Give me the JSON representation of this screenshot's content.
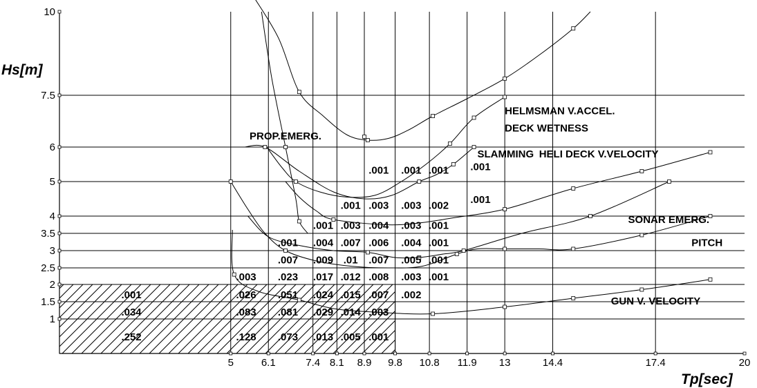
{
  "chart_data": {
    "type": "line",
    "xlabel": "Tp[sec]",
    "ylabel": "Hs[m]",
    "xlim": [
      0,
      20
    ],
    "ylim": [
      0,
      10
    ],
    "x_ticks": [
      {
        "v": 5,
        "t": "5"
      },
      {
        "v": 6.1,
        "t": "6.1"
      },
      {
        "v": 7.4,
        "t": "7.4"
      },
      {
        "v": 8.1,
        "t": "8.1"
      },
      {
        "v": 8.9,
        "t": "8.9"
      },
      {
        "v": 9.8,
        "t": "9.8"
      },
      {
        "v": 10.8,
        "t": "10.8"
      },
      {
        "v": 11.9,
        "t": "11.9"
      },
      {
        "v": 13,
        "t": "13"
      },
      {
        "v": 14.4,
        "t": "14.4"
      },
      {
        "v": 17.4,
        "t": "17.4"
      },
      {
        "v": 20,
        "t": "20"
      }
    ],
    "x_gridlines": [
      5,
      6.1,
      7.4,
      8.1,
      8.9,
      9.8,
      10.8,
      11.9,
      13,
      14.4,
      17.4
    ],
    "y_ticks": [
      {
        "v": 1,
        "t": "1"
      },
      {
        "v": 1.5,
        "t": "1.5"
      },
      {
        "v": 2,
        "t": "2"
      },
      {
        "v": 2.5,
        "t": "2.5"
      },
      {
        "v": 3,
        "t": "3"
      },
      {
        "v": 3.5,
        "t": "3.5"
      },
      {
        "v": 4,
        "t": "4"
      },
      {
        "v": 5,
        "t": "5"
      },
      {
        "v": 6,
        "t": "6"
      },
      {
        "v": 7.5,
        "t": "7.5"
      },
      {
        "v": 10,
        "t": "10"
      }
    ],
    "y_gridlines": [
      1,
      1.5,
      2,
      2.5,
      3,
      3.5,
      4,
      5,
      6,
      7.5
    ],
    "grid": true,
    "hatched_region": {
      "x": [
        0,
        9.8
      ],
      "y": [
        0,
        2
      ]
    },
    "series": [
      {
        "name": "HELMSMAN V.ACCEL.",
        "label_at": [
          13.0,
          6.95
        ],
        "points": [
          [
            7.0,
            7.6
          ],
          [
            9.0,
            6.2
          ],
          [
            10.9,
            6.9
          ],
          [
            13.0,
            8.0
          ],
          [
            15.0,
            9.5
          ]
        ],
        "path": [
          [
            5.7,
            10.4
          ],
          [
            6.4,
            9.2
          ],
          [
            7.0,
            7.6
          ],
          [
            7.7,
            6.9
          ],
          [
            8.4,
            6.35
          ],
          [
            9.0,
            6.2
          ],
          [
            9.6,
            6.25
          ],
          [
            10.2,
            6.5
          ],
          [
            10.9,
            6.9
          ],
          [
            11.9,
            7.4
          ],
          [
            13.0,
            8.0
          ],
          [
            14.0,
            8.7
          ],
          [
            15.0,
            9.5
          ],
          [
            15.5,
            10.0
          ]
        ]
      },
      {
        "name": "DECK WETNESS",
        "label_at": [
          13.0,
          6.45
        ],
        "points": [
          [
            6.9,
            5.0
          ],
          [
            11.4,
            6.1
          ],
          [
            12.1,
            6.85
          ],
          [
            13.0,
            7.45
          ]
        ],
        "path": [
          [
            6.05,
            6.0
          ],
          [
            6.5,
            5.4
          ],
          [
            6.9,
            5.0
          ],
          [
            7.6,
            4.7
          ],
          [
            8.4,
            4.55
          ],
          [
            9.2,
            4.6
          ],
          [
            9.9,
            4.95
          ],
          [
            10.7,
            5.5
          ],
          [
            11.4,
            6.1
          ],
          [
            12.1,
            6.85
          ],
          [
            13.0,
            7.45
          ]
        ]
      },
      {
        "name": "SLAMMING",
        "label_at": [
          12.2,
          5.7
        ],
        "points": [
          [
            6.0,
            6.0
          ],
          [
            8.9,
            6.3
          ],
          [
            10.5,
            5.0
          ],
          [
            11.5,
            5.5
          ],
          [
            12.1,
            6.0
          ]
        ],
        "path": [
          [
            5.4,
            6.0
          ],
          [
            6.0,
            6.0
          ],
          [
            7.0,
            5.3
          ],
          [
            8.0,
            4.7
          ],
          [
            8.9,
            4.5
          ],
          [
            9.7,
            4.6
          ],
          [
            10.5,
            5.0
          ],
          [
            11.0,
            5.2
          ],
          [
            11.5,
            5.5
          ],
          [
            12.1,
            6.0
          ]
        ]
      },
      {
        "name": "HELI DECK V.VELOCITY",
        "label_at": [
          14.0,
          5.7
        ],
        "points": [
          [
            8.0,
            3.9
          ],
          [
            13.0,
            4.2
          ],
          [
            15.0,
            4.8
          ],
          [
            17.0,
            5.3
          ],
          [
            19.0,
            5.85
          ]
        ],
        "path": [
          [
            6.6,
            5.0
          ],
          [
            7.0,
            4.55
          ],
          [
            7.5,
            4.15
          ],
          [
            8.0,
            3.9
          ],
          [
            9.5,
            3.75
          ],
          [
            10.5,
            3.8
          ],
          [
            11.5,
            3.95
          ],
          [
            13.0,
            4.2
          ],
          [
            15.0,
            4.8
          ],
          [
            17.0,
            5.3
          ],
          [
            19.0,
            5.85
          ]
        ]
      },
      {
        "name": "SONAR EMERG.",
        "label_at": [
          16.6,
          3.8
        ],
        "points": [
          [
            9.0,
            2.95
          ],
          [
            10.5,
            2.8
          ],
          [
            11.8,
            3.0
          ],
          [
            15.5,
            4.0
          ],
          [
            17.8,
            5.0
          ]
        ],
        "path": [
          [
            5.5,
            4.0
          ],
          [
            6.1,
            3.4
          ],
          [
            7.0,
            3.15
          ],
          [
            8.0,
            3.0
          ],
          [
            9.0,
            2.95
          ],
          [
            9.8,
            2.8
          ],
          [
            10.5,
            2.8
          ],
          [
            11.2,
            2.9
          ],
          [
            11.8,
            3.0
          ],
          [
            13.5,
            3.5
          ],
          [
            15.5,
            4.0
          ],
          [
            17.8,
            5.0
          ]
        ]
      },
      {
        "name": "PITCH",
        "label_at": [
          18.45,
          3.13
        ],
        "points": [
          [
            5.0,
            5.0
          ],
          [
            6.6,
            3.0
          ],
          [
            11.6,
            2.9
          ],
          [
            13.0,
            3.05
          ],
          [
            15.0,
            3.05
          ],
          [
            17.0,
            3.45
          ],
          [
            19.0,
            4.0
          ]
        ],
        "path": [
          [
            5.0,
            5.0
          ],
          [
            5.5,
            4.2
          ],
          [
            6.0,
            3.5
          ],
          [
            6.6,
            3.0
          ],
          [
            7.5,
            2.7
          ],
          [
            8.5,
            2.55
          ],
          [
            9.6,
            2.5
          ],
          [
            10.6,
            2.55
          ],
          [
            11.6,
            2.9
          ],
          [
            12.2,
            3.05
          ],
          [
            13.0,
            3.05
          ],
          [
            14.0,
            3.05
          ],
          [
            15.0,
            3.05
          ],
          [
            17.0,
            3.45
          ],
          [
            19.0,
            4.0
          ]
        ]
      },
      {
        "name": "GUN V. VELOCITY",
        "label_at": [
          16.1,
          1.42
        ],
        "points": [
          [
            5.1,
            2.3
          ],
          [
            7.0,
            1.55
          ],
          [
            10.9,
            1.15
          ],
          [
            13.0,
            1.35
          ],
          [
            15.0,
            1.6
          ],
          [
            17.0,
            1.85
          ],
          [
            19.0,
            2.15
          ]
        ],
        "path": [
          [
            5.05,
            3.6
          ],
          [
            5.1,
            2.3
          ],
          [
            5.8,
            1.8
          ],
          [
            7.0,
            1.55
          ],
          [
            8.0,
            1.3
          ],
          [
            9.2,
            1.2
          ],
          [
            10.9,
            1.15
          ],
          [
            13.0,
            1.35
          ],
          [
            15.0,
            1.6
          ],
          [
            17.0,
            1.85
          ],
          [
            19.0,
            2.15
          ]
        ]
      },
      {
        "name": "PROP.EMERG.",
        "label_at": [
          5.55,
          6.22
        ],
        "points": [
          [
            6.6,
            6.0
          ],
          [
            7.0,
            3.85
          ]
        ],
        "path": [
          [
            5.9,
            10.0
          ],
          [
            6.2,
            8.0
          ],
          [
            6.6,
            6.0
          ],
          [
            6.9,
            4.5
          ],
          [
            7.0,
            3.85
          ],
          [
            7.25,
            3.5
          ]
        ]
      }
    ],
    "cell_values": [
      {
        "x": 2.1,
        "y": 1.72,
        "t": ".001"
      },
      {
        "x": 2.1,
        "y": 1.22,
        "t": ".034"
      },
      {
        "x": 2.1,
        "y": 0.5,
        "t": ".252"
      },
      {
        "x": 5.45,
        "y": 2.25,
        "t": ".003"
      },
      {
        "x": 5.45,
        "y": 1.72,
        "t": ".026"
      },
      {
        "x": 5.45,
        "y": 1.22,
        "t": ".083"
      },
      {
        "x": 5.45,
        "y": 0.5,
        "t": ".128"
      },
      {
        "x": 6.67,
        "y": 3.25,
        "t": ".001"
      },
      {
        "x": 6.67,
        "y": 2.75,
        "t": ".007"
      },
      {
        "x": 6.67,
        "y": 2.25,
        "t": ".023"
      },
      {
        "x": 6.67,
        "y": 1.72,
        "t": ".051"
      },
      {
        "x": 6.67,
        "y": 1.22,
        "t": ".081"
      },
      {
        "x": 6.67,
        "y": 0.5,
        "t": ".073"
      },
      {
        "x": 7.7,
        "y": 3.75,
        "t": ".001"
      },
      {
        "x": 7.7,
        "y": 3.25,
        "t": ".004"
      },
      {
        "x": 7.7,
        "y": 2.75,
        "t": ".009"
      },
      {
        "x": 7.7,
        "y": 2.25,
        "t": ".017"
      },
      {
        "x": 7.7,
        "y": 1.72,
        "t": ".024"
      },
      {
        "x": 7.7,
        "y": 1.22,
        "t": ".029"
      },
      {
        "x": 7.7,
        "y": 0.5,
        "t": ".013"
      },
      {
        "x": 8.5,
        "y": 4.33,
        "t": ".001"
      },
      {
        "x": 8.5,
        "y": 3.75,
        "t": ".003"
      },
      {
        "x": 8.5,
        "y": 3.25,
        "t": ".007"
      },
      {
        "x": 8.5,
        "y": 2.75,
        "t": ".01"
      },
      {
        "x": 8.5,
        "y": 2.25,
        "t": ".012"
      },
      {
        "x": 8.5,
        "y": 1.72,
        "t": ".015"
      },
      {
        "x": 8.5,
        "y": 1.22,
        "t": ".014"
      },
      {
        "x": 8.5,
        "y": 0.5,
        "t": ".005"
      },
      {
        "x": 9.32,
        "y": 5.35,
        "t": ".001"
      },
      {
        "x": 9.32,
        "y": 4.33,
        "t": ".003"
      },
      {
        "x": 9.32,
        "y": 3.75,
        "t": ".004"
      },
      {
        "x": 9.32,
        "y": 3.25,
        "t": ".006"
      },
      {
        "x": 9.32,
        "y": 2.75,
        "t": ".007"
      },
      {
        "x": 9.32,
        "y": 2.25,
        "t": ".008"
      },
      {
        "x": 9.32,
        "y": 1.72,
        "t": ".007"
      },
      {
        "x": 9.32,
        "y": 1.22,
        "t": ".003"
      },
      {
        "x": 9.32,
        "y": 0.5,
        "t": ".001"
      },
      {
        "x": 10.27,
        "y": 5.35,
        "t": ".001"
      },
      {
        "x": 10.27,
        "y": 4.33,
        "t": ".003"
      },
      {
        "x": 10.27,
        "y": 3.75,
        "t": ".003"
      },
      {
        "x": 10.27,
        "y": 3.25,
        "t": ".004"
      },
      {
        "x": 10.27,
        "y": 2.75,
        "t": ".005"
      },
      {
        "x": 10.27,
        "y": 2.25,
        "t": ".003"
      },
      {
        "x": 10.27,
        "y": 1.72,
        "t": ".002"
      },
      {
        "x": 11.07,
        "y": 5.35,
        "t": ".001"
      },
      {
        "x": 11.07,
        "y": 4.33,
        "t": ".002"
      },
      {
        "x": 11.07,
        "y": 3.75,
        "t": ".001"
      },
      {
        "x": 11.07,
        "y": 3.25,
        "t": ".001"
      },
      {
        "x": 11.07,
        "y": 2.75,
        "t": ".001"
      },
      {
        "x": 11.07,
        "y": 2.25,
        "t": ".001"
      },
      {
        "x": 12.29,
        "y": 5.45,
        "t": ".001"
      },
      {
        "x": 12.29,
        "y": 4.5,
        "t": ".001"
      }
    ]
  }
}
